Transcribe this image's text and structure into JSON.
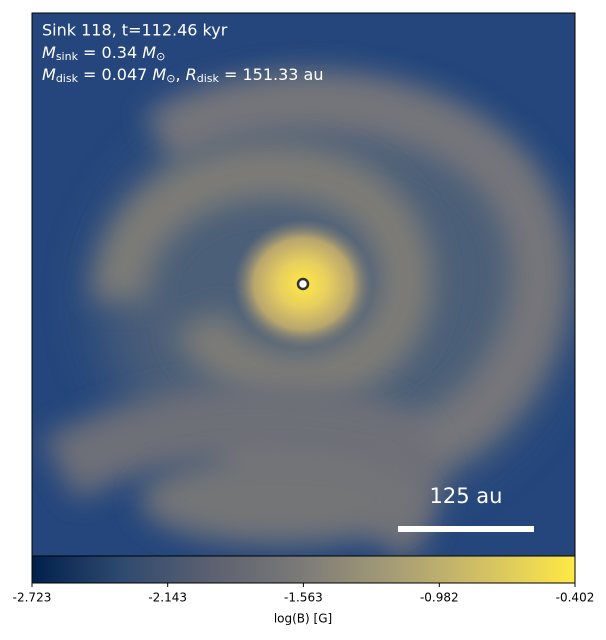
{
  "chart_data": {
    "type": "image",
    "header": {
      "line1": "Sink 118, t=112.46 kyr",
      "m_sink": {
        "symbol": "M",
        "sub": "sink",
        "value": " = 0.34 ",
        "unit": "M",
        "unit_sub": "⊙"
      },
      "m_disk": {
        "symbol": "M",
        "sub": "disk",
        "value": " = 0.047 ",
        "unit": "M",
        "unit_sub": "⊙",
        "sep": ", ",
        "r_symbol": "R",
        "r_sub": "disk",
        "r_value": " = 151.33 au"
      }
    },
    "scale_bar": "125 au",
    "colorbar": {
      "label": "log(B) [G]",
      "lim": [
        -2.723,
        -0.402
      ],
      "ticks": [
        -2.723,
        -2.143,
        -1.563,
        -0.982,
        -0.402
      ],
      "colormap": [
        "#00204c",
        "#2f4a6f",
        "#5d6170",
        "#7c7b78",
        "#a69d75",
        "#d3c164",
        "#ffe945"
      ]
    }
  }
}
